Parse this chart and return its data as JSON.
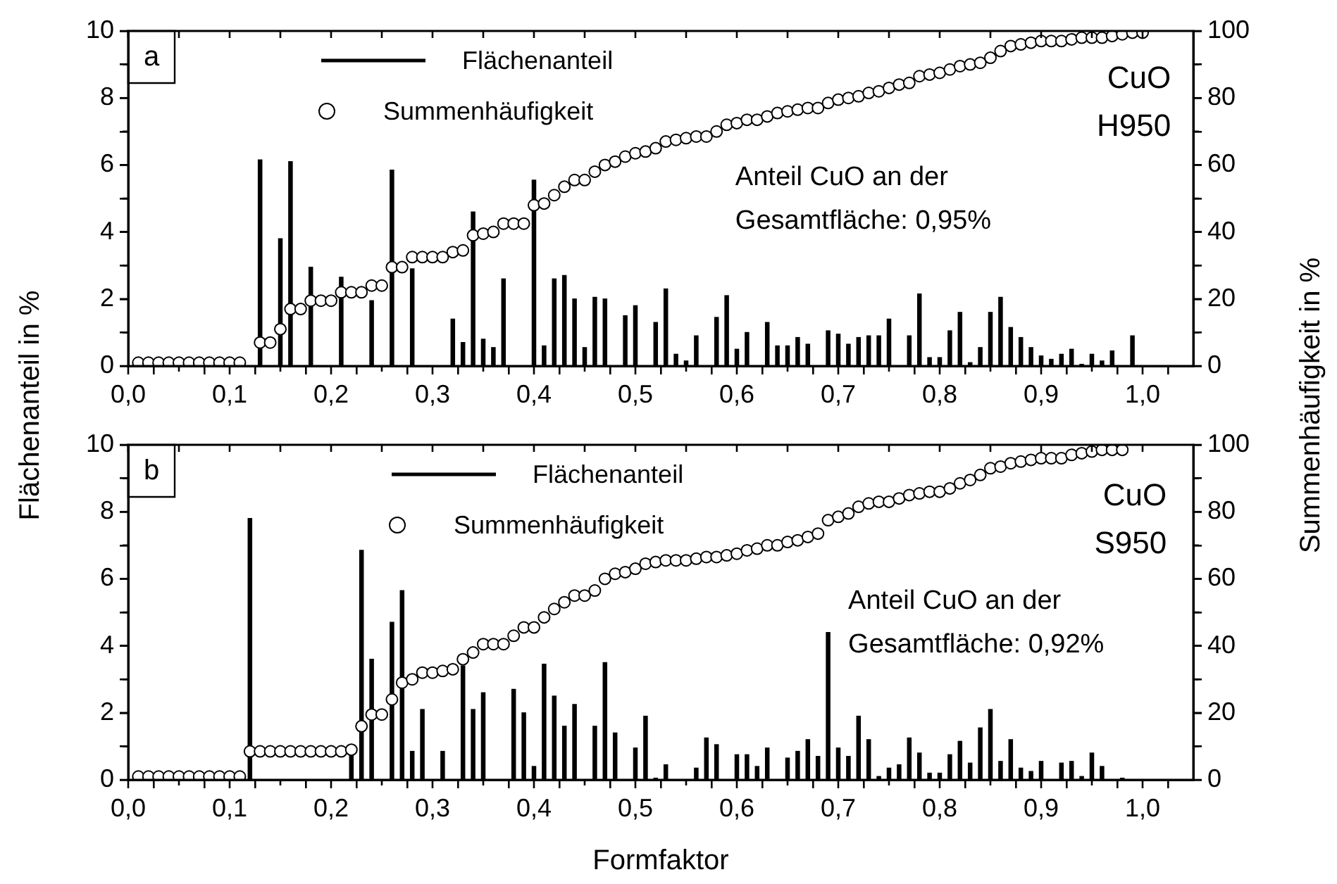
{
  "chart_data": [
    {
      "type": "bar",
      "ylabel": "Flächenanteil in %",
      "y2label": "Summenhäufigkeit in %",
      "xlim": [
        0,
        1.05
      ],
      "xticks": [
        {
          "value": 0,
          "label": "0,0"
        },
        {
          "value": 0.05,
          "label": null
        },
        {
          "value": 0.1,
          "label": "0,1"
        },
        {
          "value": 0.15,
          "label": null
        },
        {
          "value": 0.2,
          "label": "0,2"
        },
        {
          "value": 0.25,
          "label": null
        },
        {
          "value": 0.3,
          "label": "0,3"
        },
        {
          "value": 0.35,
          "label": null
        },
        {
          "value": 0.4,
          "label": "0,4"
        },
        {
          "value": 0.45,
          "label": null
        },
        {
          "value": 0.5,
          "label": "0,5"
        },
        {
          "value": 0.55,
          "label": null
        },
        {
          "value": 0.6,
          "label": "0,6"
        },
        {
          "value": 0.65,
          "label": null
        },
        {
          "value": 0.7,
          "label": "0,7"
        },
        {
          "value": 0.75,
          "label": null
        },
        {
          "value": 0.8,
          "label": "0,8"
        },
        {
          "value": 0.85,
          "label": null
        },
        {
          "value": 0.9,
          "label": "0,9"
        },
        {
          "value": 0.95,
          "label": null
        },
        {
          "value": 1.0,
          "label": "1,0"
        }
      ],
      "ylim": [
        0,
        10
      ],
      "yticks": [
        0,
        {
          "value": 1,
          "label": null
        },
        2,
        {
          "value": 3,
          "label": null
        },
        4,
        {
          "value": 5,
          "label": null
        },
        6,
        {
          "value": 7,
          "label": null
        },
        8,
        {
          "value": 9,
          "label": null
        },
        10
      ],
      "y2lim": [
        0,
        100
      ],
      "y2ticks": [
        0,
        {
          "value": 10,
          "label": null
        },
        20,
        {
          "value": 30,
          "label": null
        },
        40,
        {
          "value": 50,
          "label": null
        },
        60,
        {
          "value": 70,
          "label": null
        },
        80,
        {
          "value": 90,
          "label": null
        },
        100
      ],
      "grid": false,
      "legend": "top",
      "marker": "circle",
      "annotations": [
        "a",
        "CuO\nH950",
        "Anteil CuO an der\nGesamtfläche: 0,95%"
      ],
      "series": [
        {
          "name": "Flächenanteil",
          "color": "#000000",
          "x": [
            0.13,
            0.15,
            0.16,
            0.18,
            0.21,
            0.24,
            0.26,
            0.28,
            0.32,
            0.33,
            0.34,
            0.35,
            0.36,
            0.37,
            0.4,
            0.41,
            0.42,
            0.43,
            0.44,
            0.45,
            0.46,
            0.47,
            0.49,
            0.5,
            0.52,
            0.53,
            0.54,
            0.55,
            0.56,
            0.58,
            0.59,
            0.6,
            0.61,
            0.63,
            0.64,
            0.65,
            0.66,
            0.67,
            0.69,
            0.7,
            0.71,
            0.72,
            0.73,
            0.74,
            0.75,
            0.77,
            0.78,
            0.79,
            0.8,
            0.81,
            0.82,
            0.83,
            0.84,
            0.85,
            0.86,
            0.87,
            0.88,
            0.89,
            0.9,
            0.91,
            0.92,
            0.93,
            0.94,
            0.95,
            0.96,
            0.97,
            0.99
          ],
          "values": [
            6.15,
            3.8,
            6.1,
            2.95,
            2.65,
            1.95,
            5.85,
            2.9,
            1.4,
            0.7,
            4.6,
            0.8,
            0.55,
            2.6,
            5.55,
            0.6,
            2.6,
            2.7,
            2.0,
            0.55,
            2.05,
            2.0,
            1.5,
            1.8,
            1.3,
            2.3,
            0.35,
            0.15,
            0.9,
            1.45,
            2.1,
            0.5,
            1.0,
            1.3,
            0.6,
            0.6,
            0.85,
            0.65,
            1.05,
            0.95,
            0.65,
            0.85,
            0.9,
            0.9,
            1.4,
            0.9,
            2.15,
            0.25,
            0.25,
            1.05,
            1.6,
            0.1,
            0.55,
            1.6,
            2.05,
            1.15,
            0.85,
            0.55,
            0.3,
            0.2,
            0.35,
            0.5,
            0.05,
            0.35,
            0.15,
            0.45,
            0.9
          ]
        },
        {
          "name": "Summenhäufigkeit",
          "type": "scatter",
          "axis": "y2",
          "color": "#000000",
          "x": [
            0.01,
            0.02,
            0.03,
            0.04,
            0.05,
            0.06,
            0.07,
            0.08,
            0.09,
            0.1,
            0.11,
            0.13,
            0.14,
            0.15,
            0.16,
            0.17,
            0.18,
            0.19,
            0.2,
            0.21,
            0.22,
            0.23,
            0.24,
            0.25,
            0.26,
            0.27,
            0.28,
            0.29,
            0.3,
            0.31,
            0.32,
            0.33,
            0.34,
            0.35,
            0.36,
            0.37,
            0.38,
            0.39,
            0.4,
            0.41,
            0.42,
            0.43,
            0.44,
            0.45,
            0.46,
            0.47,
            0.48,
            0.49,
            0.5,
            0.51,
            0.52,
            0.53,
            0.54,
            0.55,
            0.56,
            0.57,
            0.58,
            0.59,
            0.6,
            0.61,
            0.62,
            0.63,
            0.64,
            0.65,
            0.66,
            0.67,
            0.68,
            0.69,
            0.7,
            0.71,
            0.72,
            0.73,
            0.74,
            0.75,
            0.76,
            0.77,
            0.78,
            0.79,
            0.8,
            0.81,
            0.82,
            0.83,
            0.84,
            0.85,
            0.86,
            0.87,
            0.88,
            0.89,
            0.9,
            0.91,
            0.92,
            0.93,
            0.94,
            0.95,
            0.96,
            0.97,
            0.98,
            0.99,
            1.0
          ],
          "values": [
            1,
            1,
            1,
            1,
            1,
            1,
            1,
            1,
            1,
            1,
            1,
            7,
            7,
            11,
            17,
            17,
            19.5,
            19.5,
            19.5,
            22,
            22,
            22,
            24,
            24,
            29.5,
            29.5,
            32.5,
            32.5,
            32.5,
            32.5,
            34,
            34.5,
            39,
            39.5,
            40,
            42.5,
            42.5,
            42.5,
            48,
            48.5,
            51,
            53.5,
            55.5,
            55.5,
            58,
            60,
            61,
            62.5,
            63.5,
            64,
            65,
            67,
            67.5,
            68,
            68.5,
            68.5,
            70,
            72,
            72.5,
            73.5,
            73.5,
            74.5,
            75.5,
            76,
            76.5,
            77,
            77,
            78.5,
            79.5,
            80,
            80.5,
            81.5,
            82,
            83,
            84,
            84.5,
            86.5,
            87,
            87.5,
            88.5,
            89.5,
            90,
            90.5,
            92,
            94,
            95.5,
            96,
            96.5,
            97,
            97,
            97,
            97.5,
            98,
            98,
            98,
            98.5,
            99,
            99.5,
            99.5
          ]
        }
      ]
    },
    {
      "type": "bar",
      "xlabel": "Formfaktor",
      "xlim": [
        0,
        1.05
      ],
      "xticks": [
        {
          "value": 0,
          "label": "0,0"
        },
        {
          "value": 0.05,
          "label": null
        },
        {
          "value": 0.1,
          "label": "0,1"
        },
        {
          "value": 0.15,
          "label": null
        },
        {
          "value": 0.2,
          "label": "0,2"
        },
        {
          "value": 0.25,
          "label": null
        },
        {
          "value": 0.3,
          "label": "0,3"
        },
        {
          "value": 0.35,
          "label": null
        },
        {
          "value": 0.4,
          "label": "0,4"
        },
        {
          "value": 0.45,
          "label": null
        },
        {
          "value": 0.5,
          "label": "0,5"
        },
        {
          "value": 0.55,
          "label": null
        },
        {
          "value": 0.6,
          "label": "0,6"
        },
        {
          "value": 0.65,
          "label": null
        },
        {
          "value": 0.7,
          "label": "0,7"
        },
        {
          "value": 0.75,
          "label": null
        },
        {
          "value": 0.8,
          "label": "0,8"
        },
        {
          "value": 0.85,
          "label": null
        },
        {
          "value": 0.9,
          "label": "0,9"
        },
        {
          "value": 0.95,
          "label": null
        },
        {
          "value": 1.0,
          "label": "1,0"
        }
      ],
      "ylim": [
        0,
        10
      ],
      "yticks": [
        0,
        {
          "value": 1,
          "label": null
        },
        2,
        {
          "value": 3,
          "label": null
        },
        4,
        {
          "value": 5,
          "label": null
        },
        6,
        {
          "value": 7,
          "label": null
        },
        8,
        {
          "value": 9,
          "label": null
        },
        10
      ],
      "y2lim": [
        0,
        100
      ],
      "y2ticks": [
        0,
        {
          "value": 10,
          "label": null
        },
        20,
        {
          "value": 30,
          "label": null
        },
        40,
        {
          "value": 50,
          "label": null
        },
        60,
        {
          "value": 70,
          "label": null
        },
        80,
        {
          "value": 90,
          "label": null
        },
        100
      ],
      "grid": false,
      "legend": "top",
      "marker": "circle",
      "annotations": [
        "b",
        "CuO\nS950",
        "Anteil CuO an der\nGesamtfläche: 0,92%"
      ],
      "series": [
        {
          "name": "Flächenanteil",
          "color": "#000000",
          "x": [
            0.12,
            0.22,
            0.23,
            0.24,
            0.26,
            0.27,
            0.28,
            0.29,
            0.31,
            0.33,
            0.34,
            0.35,
            0.38,
            0.39,
            0.4,
            0.41,
            0.42,
            0.43,
            0.44,
            0.46,
            0.47,
            0.48,
            0.5,
            0.51,
            0.52,
            0.53,
            0.56,
            0.57,
            0.58,
            0.6,
            0.61,
            0.62,
            0.63,
            0.65,
            0.66,
            0.67,
            0.68,
            0.69,
            0.7,
            0.71,
            0.72,
            0.73,
            0.74,
            0.75,
            0.76,
            0.77,
            0.78,
            0.79,
            0.8,
            0.81,
            0.82,
            0.83,
            0.84,
            0.85,
            0.86,
            0.87,
            0.88,
            0.89,
            0.9,
            0.92,
            0.93,
            0.94,
            0.95,
            0.96,
            0.98
          ],
          "values": [
            7.8,
            0.8,
            6.85,
            3.6,
            4.7,
            5.65,
            0.85,
            2.1,
            0.85,
            3.4,
            2.1,
            2.6,
            2.7,
            2.0,
            0.4,
            3.45,
            2.5,
            1.6,
            2.25,
            1.6,
            3.5,
            1.4,
            0.95,
            1.9,
            0.05,
            0.45,
            0.35,
            1.25,
            1.05,
            0.75,
            0.75,
            0.4,
            0.95,
            0.65,
            0.85,
            1.2,
            0.7,
            4.4,
            0.95,
            0.7,
            1.9,
            1.2,
            0.1,
            0.35,
            0.45,
            1.25,
            0.8,
            0.2,
            0.2,
            0.75,
            1.15,
            0.5,
            1.55,
            2.1,
            0.55,
            1.2,
            0.35,
            0.25,
            0.55,
            0.5,
            0.55,
            0.1,
            0.8,
            0.4,
            0.05
          ]
        },
        {
          "name": "Summenhäufigkeit",
          "type": "scatter",
          "axis": "y2",
          "color": "#000000",
          "x": [
            0.01,
            0.02,
            0.03,
            0.04,
            0.05,
            0.06,
            0.07,
            0.08,
            0.09,
            0.1,
            0.11,
            0.12,
            0.13,
            0.14,
            0.15,
            0.16,
            0.17,
            0.18,
            0.19,
            0.2,
            0.21,
            0.22,
            0.23,
            0.24,
            0.25,
            0.26,
            0.27,
            0.28,
            0.29,
            0.3,
            0.31,
            0.32,
            0.33,
            0.34,
            0.35,
            0.36,
            0.37,
            0.38,
            0.39,
            0.4,
            0.41,
            0.42,
            0.43,
            0.44,
            0.45,
            0.46,
            0.47,
            0.48,
            0.49,
            0.5,
            0.51,
            0.52,
            0.53,
            0.54,
            0.55,
            0.56,
            0.57,
            0.58,
            0.59,
            0.6,
            0.61,
            0.62,
            0.63,
            0.64,
            0.65,
            0.66,
            0.67,
            0.68,
            0.69,
            0.7,
            0.71,
            0.72,
            0.73,
            0.74,
            0.75,
            0.76,
            0.77,
            0.78,
            0.79,
            0.8,
            0.81,
            0.82,
            0.83,
            0.84,
            0.85,
            0.86,
            0.87,
            0.88,
            0.89,
            0.9,
            0.91,
            0.92,
            0.93,
            0.94,
            0.95,
            0.96,
            0.97,
            0.98
          ],
          "values": [
            1,
            1,
            1,
            1,
            1,
            1,
            1,
            1,
            1,
            1,
            1,
            8.5,
            8.5,
            8.5,
            8.5,
            8.5,
            8.5,
            8.5,
            8.5,
            8.5,
            8.5,
            9,
            16,
            19.5,
            19.5,
            24,
            29,
            30,
            32,
            32,
            32.5,
            33,
            36,
            38,
            40.5,
            40.5,
            40.5,
            43,
            45.5,
            45.5,
            48.5,
            51,
            53,
            55,
            55,
            56.5,
            60,
            61.5,
            62,
            63,
            64.5,
            65,
            65.5,
            65.5,
            65.5,
            66,
            66.5,
            66.5,
            67,
            67.5,
            68.5,
            69,
            70,
            70,
            71,
            71.5,
            72.5,
            73.5,
            77.5,
            78.5,
            79.5,
            81.5,
            82.5,
            83,
            83,
            84,
            85,
            85.5,
            86,
            86,
            87,
            88.5,
            89.5,
            91,
            93,
            93.5,
            94.5,
            95,
            95.5,
            96,
            96,
            96,
            97,
            97.5,
            98,
            98.5,
            98.5,
            98.5
          ]
        }
      ]
    }
  ]
}
